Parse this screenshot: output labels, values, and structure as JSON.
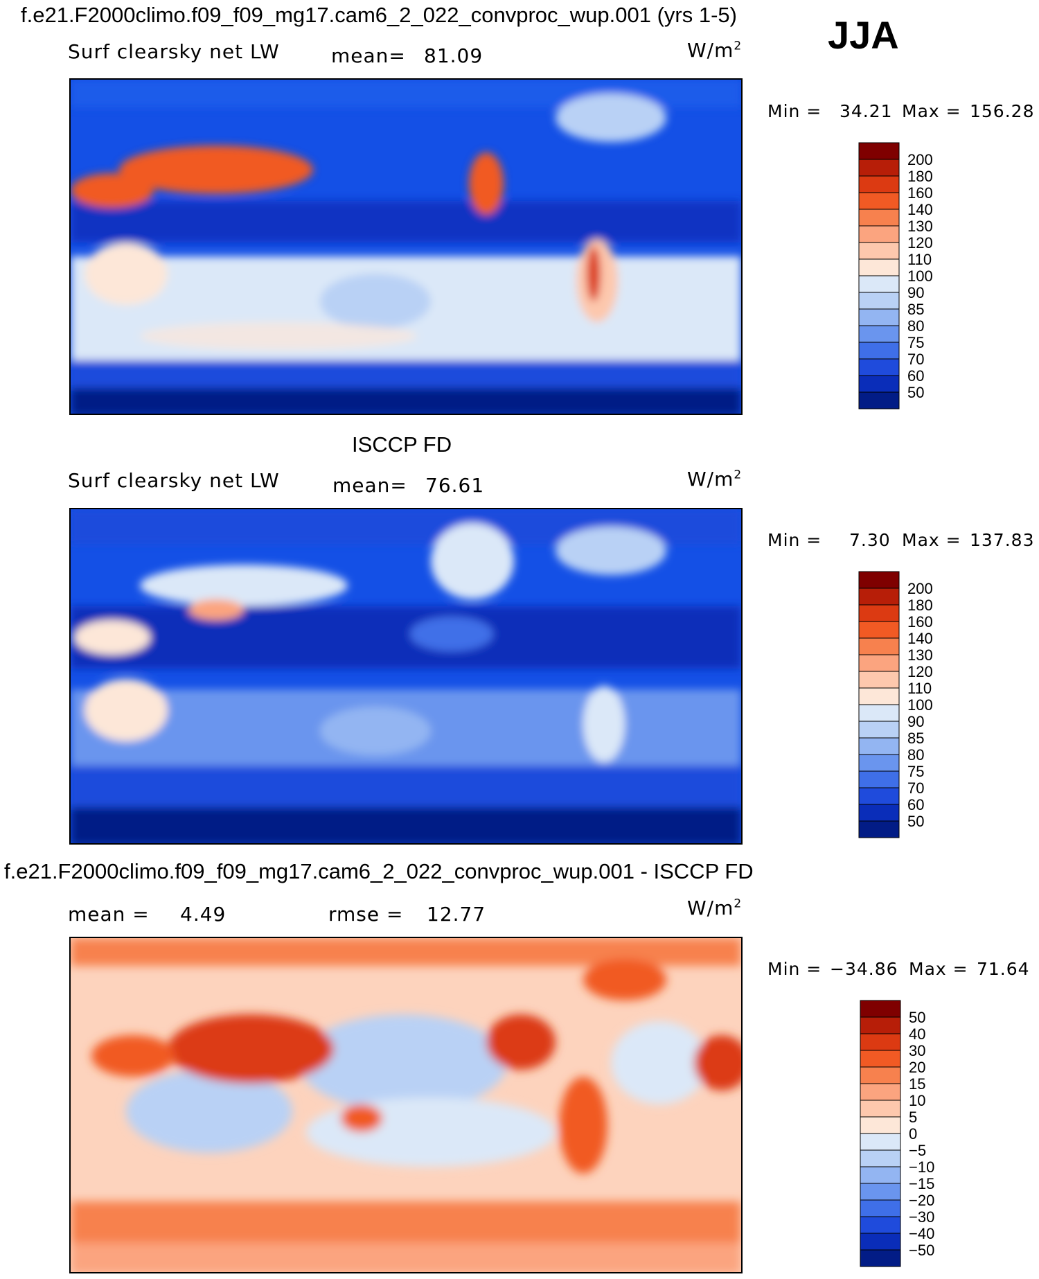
{
  "season": "JJA",
  "units_base": "W/m",
  "units_exp": "2",
  "panels": [
    {
      "title": "f.e21.F2000climo.f09_f09_mg17.cam6_2_022_convproc_wup.001 (yrs 1-5)",
      "variable": "Surf clearsky net LW",
      "stat1_label": "mean=",
      "stat1_value": "81.09",
      "stat2_label": "",
      "stat2_value": "",
      "min_label": "Min =",
      "min_value": "34.21",
      "max_label": "Max =",
      "max_value": "156.28"
    },
    {
      "title": "ISCCP FD",
      "variable": "Surf clearsky net LW",
      "stat1_label": "mean=",
      "stat1_value": "76.61",
      "stat2_label": "",
      "stat2_value": "",
      "min_label": "Min =",
      "min_value": "7.30",
      "max_label": "Max =",
      "max_value": "137.83"
    },
    {
      "title": "f.e21.F2000climo.f09_f09_mg17.cam6_2_022_convproc_wup.001 - ISCCP FD",
      "variable": "",
      "stat1_label": "mean =",
      "stat1_value": "4.49",
      "stat2_label": "rmse =",
      "stat2_value": "12.77",
      "min_label": "Min =",
      "min_value": "−34.86",
      "max_label": "Max =",
      "max_value": "71.64"
    }
  ],
  "chart_data": [
    {
      "type": "heatmap",
      "title": "f.e21.F2000climo.f09_f09_mg17.cam6_2_022_convproc_wup.001 (yrs 1-5)",
      "subtitle": "Surf clearsky net LW",
      "mean": 81.09,
      "min": 34.21,
      "max": 156.28,
      "units": "W/m2",
      "colorbar_levels": [
        "200",
        "180",
        "160",
        "140",
        "130",
        "120",
        "110",
        "100",
        "90",
        "85",
        "80",
        "75",
        "70",
        "60",
        "50"
      ],
      "colorbar_colors": [
        "#7f0000",
        "#b71e08",
        "#dc3a12",
        "#f15a24",
        "#f7814e",
        "#fba47f",
        "#fdc8ad",
        "#fde7d8",
        "#dbe8f8",
        "#b9d1f5",
        "#93b5f2",
        "#6a95ee",
        "#3f6fe8",
        "#1f4bdc",
        "#0a2db9",
        "#021c86"
      ],
      "projection": "cylindrical equidistant, centred on the Pacific",
      "grid": false
    },
    {
      "type": "heatmap",
      "title": "ISCCP FD",
      "subtitle": "Surf clearsky net LW",
      "mean": 76.61,
      "min": 7.3,
      "max": 137.83,
      "units": "W/m2",
      "colorbar_levels": [
        "200",
        "180",
        "160",
        "140",
        "130",
        "120",
        "110",
        "100",
        "90",
        "85",
        "80",
        "75",
        "70",
        "60",
        "50"
      ],
      "colorbar_colors": [
        "#7f0000",
        "#b71e08",
        "#dc3a12",
        "#f15a24",
        "#f7814e",
        "#fba47f",
        "#fdc8ad",
        "#fde7d8",
        "#dbe8f8",
        "#b9d1f5",
        "#93b5f2",
        "#6a95ee",
        "#3f6fe8",
        "#1f4bdc",
        "#0a2db9",
        "#021c86"
      ],
      "projection": "cylindrical equidistant, centred on the Pacific",
      "grid": false
    },
    {
      "type": "heatmap",
      "title": "f.e21.F2000climo.f09_f09_mg17.cam6_2_022_convproc_wup.001 - ISCCP FD",
      "mean": 4.49,
      "rmse": 12.77,
      "min": -34.86,
      "max": 71.64,
      "units": "W/m2",
      "colorbar_levels": [
        "50",
        "40",
        "30",
        "20",
        "15",
        "10",
        "5",
        "0",
        "−5",
        "−10",
        "−15",
        "−20",
        "−30",
        "−40",
        "−50"
      ],
      "colorbar_colors": [
        "#7f0000",
        "#b71e08",
        "#dc3a12",
        "#f15a24",
        "#f7814e",
        "#fba47f",
        "#fdc8ad",
        "#fde7d8",
        "#dbe8f8",
        "#b9d1f5",
        "#93b5f2",
        "#6a95ee",
        "#3f6fe8",
        "#1f4bdc",
        "#0a2db9",
        "#021c86"
      ],
      "projection": "cylindrical equidistant, centred on the Pacific",
      "grid": false
    }
  ]
}
